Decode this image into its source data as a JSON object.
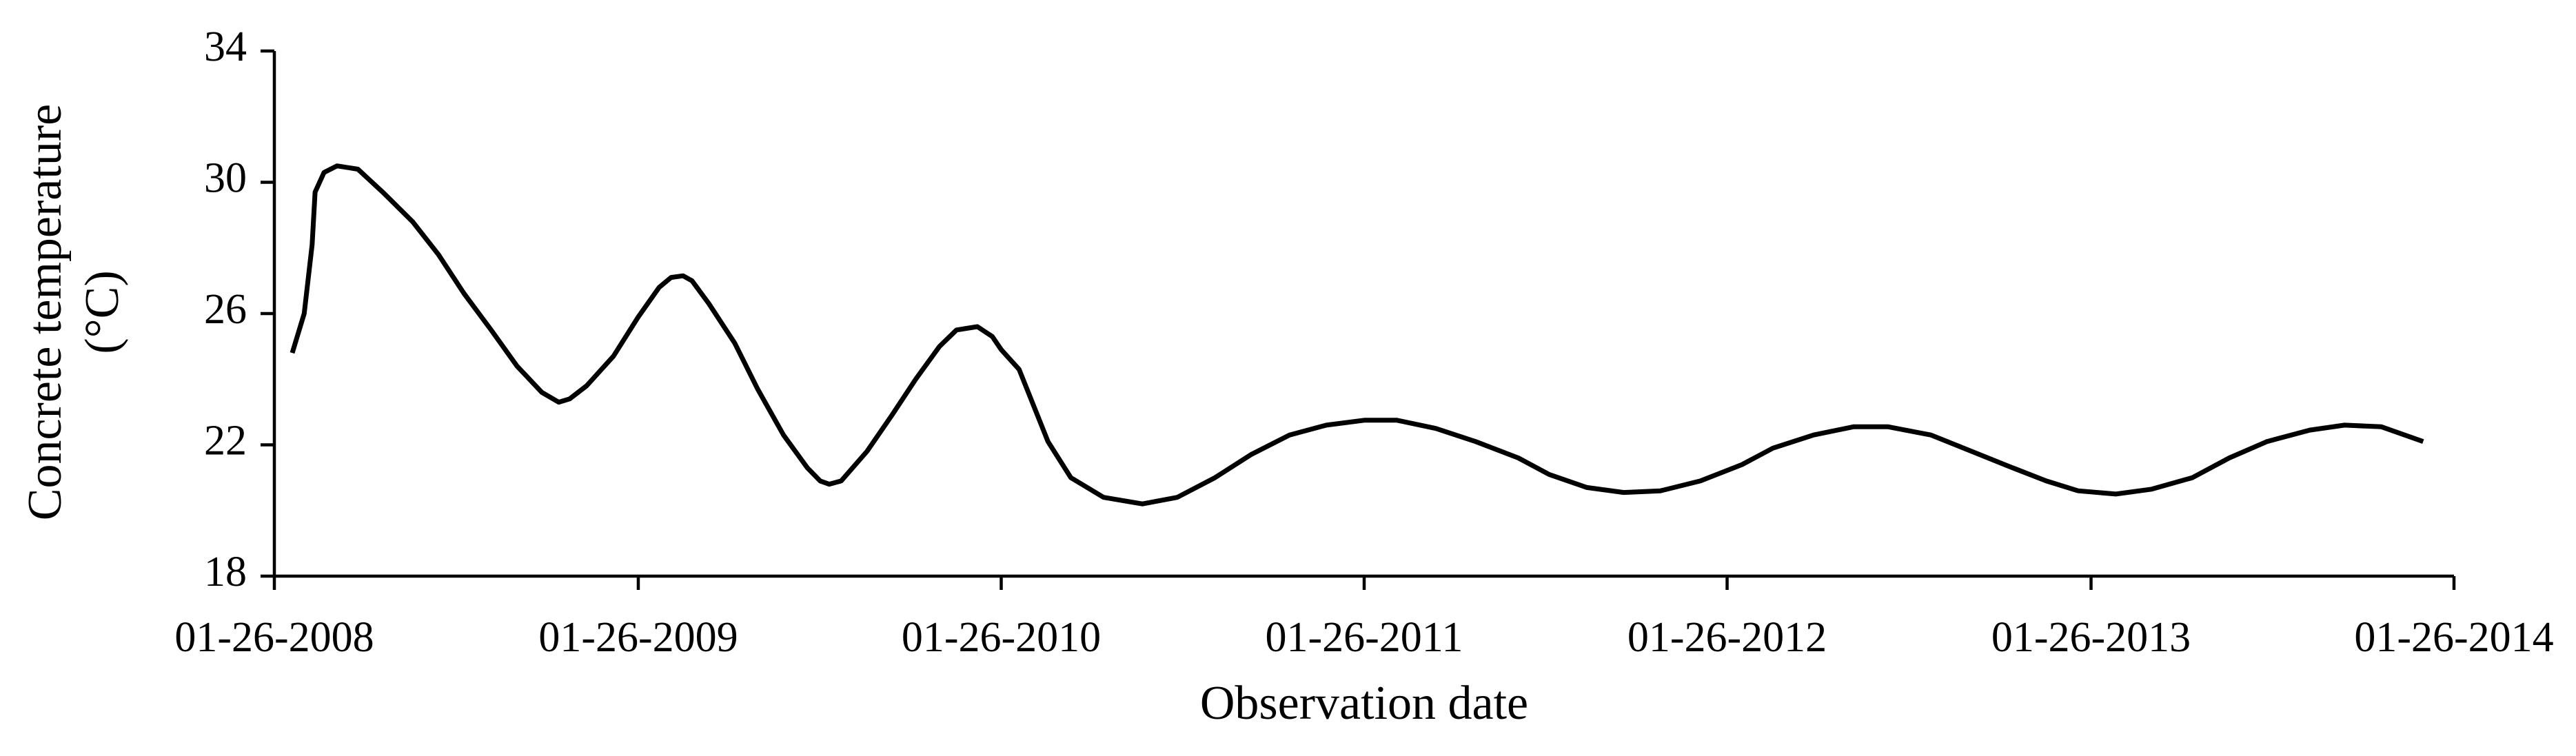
{
  "chart_data": {
    "type": "line",
    "x_label": "Observation date",
    "y_label": [
      "Concrete temperature",
      "(°C)"
    ],
    "xlim": [
      "01-26-2008",
      "01-26-2014"
    ],
    "xticks": [
      "01-26-2008",
      "01-26-2009",
      "01-26-2010",
      "01-26-2011",
      "01-26-2012",
      "01-26-2013",
      "01-26-2014"
    ],
    "ylim": [
      18,
      34
    ],
    "yticks": [
      18,
      22,
      26,
      30,
      34
    ],
    "grid": false,
    "x": [
      "02-13-2008",
      "02-25-2008",
      "03-04-2008",
      "03-07-2008",
      "03-16-2008",
      "03-29-2008",
      "04-19-2008",
      "05-14-2008",
      "06-13-2008",
      "07-09-2008",
      "08-04-2008",
      "08-31-2008",
      "09-26-2008",
      "10-21-2008",
      "11-07-2008",
      "11-18-2008",
      "12-05-2008",
      "01-01-2009",
      "01-26-2009",
      "02-16-2009",
      "02-28-2009",
      "03-12-2009",
      "03-21-2009",
      "04-07-2009",
      "05-03-2009",
      "05-26-2009",
      "06-21-2009",
      "07-15-2009",
      "07-28-2009",
      "08-06-2009",
      "08-18-2009",
      "09-13-2009",
      "10-08-2009",
      "11-01-2009",
      "11-25-2009",
      "12-12-2009",
      "01-02-2010",
      "01-17-2010",
      "01-26-2010",
      "02-13-2010",
      "03-14-2010",
      "04-06-2010",
      "05-09-2010",
      "06-17-2010",
      "07-22-2010",
      "08-29-2010",
      "10-04-2010",
      "11-12-2010",
      "12-19-2010",
      "01-26-2011",
      "02-28-2011",
      "04-08-2011",
      "05-18-2011",
      "06-30-2011",
      "07-31-2011",
      "09-07-2011",
      "10-14-2011",
      "11-20-2011",
      "12-30-2011",
      "02-10-2012",
      "03-12-2012",
      "04-22-2012",
      "06-01-2012",
      "07-06-2012",
      "08-18-2012",
      "09-28-2012",
      "11-04-2012",
      "12-12-2012",
      "01-13-2013",
      "02-20-2013",
      "03-28-2013",
      "05-08-2013",
      "06-14-2013",
      "07-22-2013",
      "09-03-2013",
      "10-08-2013",
      "11-14-2013",
      "12-26-2013"
    ],
    "series": [
      {
        "name": "Concrete temperature",
        "color": "#000000",
        "values": [
          24.8,
          26.0,
          28.1,
          29.7,
          30.3,
          30.5,
          30.4,
          29.7,
          28.8,
          27.8,
          26.6,
          25.5,
          24.4,
          23.6,
          23.3,
          23.4,
          23.8,
          24.7,
          25.9,
          26.8,
          27.1,
          27.15,
          27.0,
          26.3,
          25.1,
          23.7,
          22.3,
          21.3,
          20.9,
          20.8,
          20.9,
          21.8,
          22.9,
          24.0,
          25.0,
          25.5,
          25.6,
          25.3,
          24.9,
          24.3,
          22.1,
          21.0,
          20.4,
          20.2,
          20.4,
          21.0,
          21.7,
          22.3,
          22.6,
          22.75,
          22.75,
          22.5,
          22.1,
          21.6,
          21.1,
          20.7,
          20.55,
          20.6,
          20.9,
          21.4,
          21.9,
          22.3,
          22.55,
          22.55,
          22.3,
          21.8,
          21.35,
          20.9,
          20.6,
          20.5,
          20.65,
          21.0,
          21.6,
          22.1,
          22.45,
          22.6,
          22.55,
          22.1
        ]
      }
    ]
  }
}
